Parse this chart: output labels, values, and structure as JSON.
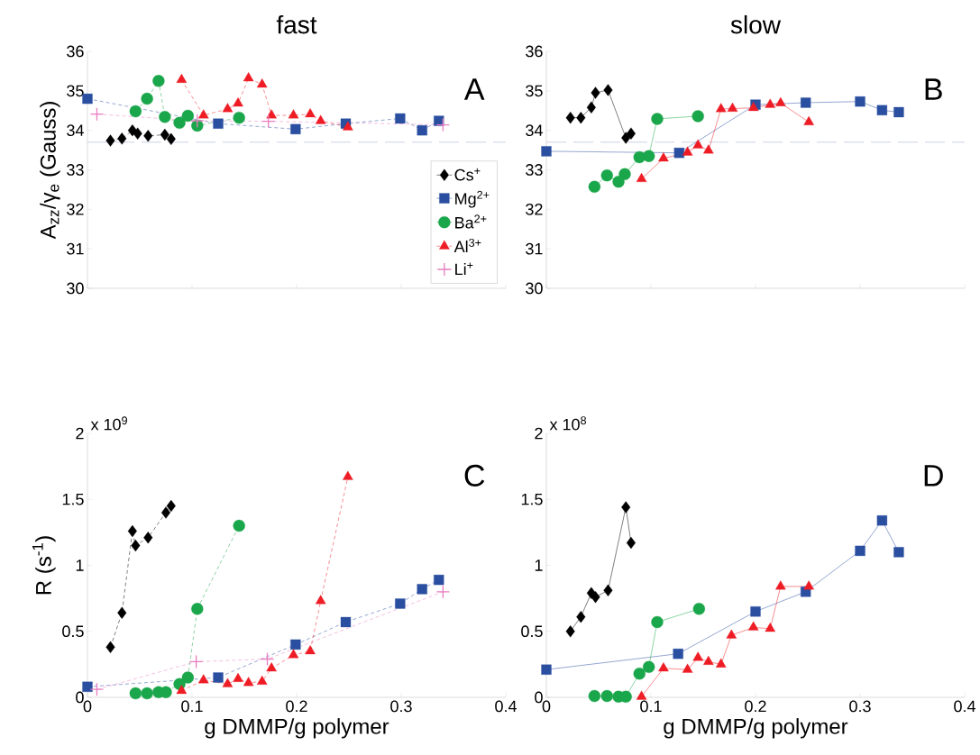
{
  "chart_data": [
    {
      "type": "line",
      "title": "fast",
      "ylabel": "A$_{zz}$/γ$_{e}$ (Gauss)",
      "annotations": [
        "A"
      ],
      "xlim": [
        0,
        0.4
      ],
      "xticks": [
        0,
        0.1,
        0.2,
        0.3,
        0.4
      ],
      "ylim": [
        30,
        36
      ],
      "yticks": [
        30,
        31,
        32,
        33,
        34,
        35,
        36
      ],
      "tick_labels": "y",
      "grid": false,
      "legend": "bottom right",
      "line_style": "dashed",
      "ref_lines": [
        {
          "axis": "y",
          "value": 33.7,
          "color": "#a8b0d8",
          "line_style": "dashed"
        }
      ],
      "series": [
        {
          "name": "Cs$^{+}$",
          "color": "#000000",
          "marker": "diamond",
          "x": [
            0.022,
            0.033,
            0.043,
            0.048,
            0.058,
            0.074,
            0.08
          ],
          "values": [
            33.74,
            33.79,
            34.0,
            33.92,
            33.86,
            33.89,
            33.78
          ]
        },
        {
          "name": "Mg$^{2+}$",
          "color": "#2a4fa0",
          "marker": "square",
          "x": [
            0,
            0.125,
            0.199,
            0.247,
            0.299,
            0.32,
            0.336
          ],
          "values": [
            34.8,
            34.17,
            34.03,
            34.17,
            34.3,
            34.0,
            34.24
          ]
        },
        {
          "name": "Ba$^{2+}$",
          "color": "#1aa64a",
          "marker": "circle",
          "x": [
            0.046,
            0.057,
            0.068,
            0.074,
            0.088,
            0.096,
            0.105,
            0.145
          ],
          "values": [
            34.48,
            34.8,
            35.25,
            34.34,
            34.19,
            34.37,
            34.12,
            34.32
          ]
        },
        {
          "name": "Al$^{3+}$",
          "color": "#ee1c25",
          "marker": "triangle",
          "x": [
            0.09,
            0.111,
            0.134,
            0.144,
            0.154,
            0.167,
            0.176,
            0.197,
            0.213,
            0.223,
            0.249
          ],
          "values": [
            35.28,
            34.38,
            34.54,
            34.68,
            35.32,
            35.16,
            34.38,
            34.38,
            34.41,
            34.24,
            34.08
          ]
        },
        {
          "name": "Li$^{+}$",
          "color": "#e87fc0",
          "marker": "cross",
          "x": [
            0.009,
            0.105,
            0.173,
            0.34
          ],
          "values": [
            34.41,
            34.24,
            34.23,
            34.14
          ]
        }
      ]
    },
    {
      "type": "line",
      "title": "slow",
      "annotations": [
        "B"
      ],
      "xlim": [
        0,
        0.4
      ],
      "xticks": [
        0,
        0.1,
        0.2,
        0.3,
        0.4
      ],
      "ylim": [
        30,
        36
      ],
      "yticks": [
        30,
        31,
        32,
        33,
        34,
        35,
        36
      ],
      "tick_labels": "y",
      "grid": false,
      "line_style": "solid",
      "ref_lines": [
        {
          "axis": "y",
          "value": 33.7,
          "color": "#a8b0d8",
          "line_style": "dashed"
        }
      ],
      "series": [
        {
          "color": "#000000",
          "marker": "diamond",
          "x": [
            0.023,
            0.033,
            0.043,
            0.047,
            0.059,
            0.076,
            0.081
          ],
          "values": [
            34.32,
            34.32,
            34.58,
            34.95,
            35.02,
            33.81,
            33.92
          ]
        },
        {
          "color": "#2a4fa0",
          "marker": "square",
          "x": [
            0,
            0.127,
            0.2,
            0.248,
            0.3,
            0.321,
            0.337
          ],
          "values": [
            33.47,
            33.43,
            34.65,
            34.7,
            34.73,
            34.51,
            34.46
          ]
        },
        {
          "color": "#1aa64a",
          "marker": "circle",
          "x": [
            0.046,
            0.058,
            0.069,
            0.075,
            0.089,
            0.098,
            0.106,
            0.145
          ],
          "values": [
            32.57,
            32.86,
            32.7,
            32.89,
            33.32,
            33.35,
            34.29,
            34.36
          ]
        },
        {
          "color": "#ee1c25",
          "marker": "triangle",
          "x": [
            0.091,
            0.112,
            0.135,
            0.145,
            0.155,
            0.167,
            0.178,
            0.198,
            0.214,
            0.224,
            0.251
          ],
          "values": [
            32.77,
            33.29,
            33.44,
            33.62,
            33.49,
            34.54,
            34.55,
            34.57,
            34.65,
            34.69,
            34.21
          ]
        }
      ]
    },
    {
      "type": "line",
      "xlabel": "g DMMP/g polymer",
      "ylabel": "R (s$^{-1}$)",
      "annotations": [
        "C",
        "x 10$^{9}$"
      ],
      "xlim": [
        0,
        0.4
      ],
      "xticks": [
        0,
        0.1,
        0.2,
        0.3,
        0.4
      ],
      "ylim": [
        0,
        2
      ],
      "yticks": [
        0,
        0.5,
        1,
        1.5,
        2
      ],
      "grid": false,
      "line_style": "dashed",
      "series": [
        {
          "color": "#000000",
          "marker": "diamond",
          "x": [
            0.022,
            0.033,
            0.043,
            0.046,
            0.058,
            0.075,
            0.08
          ],
          "values": [
            0.38,
            0.64,
            1.26,
            1.15,
            1.21,
            1.4,
            1.45
          ]
        },
        {
          "color": "#2a4fa0",
          "marker": "square",
          "x": [
            0,
            0.125,
            0.199,
            0.247,
            0.299,
            0.32,
            0.336
          ],
          "values": [
            0.08,
            0.15,
            0.4,
            0.57,
            0.71,
            0.82,
            0.89
          ]
        },
        {
          "color": "#1aa64a",
          "marker": "circle",
          "x": [
            0.046,
            0.057,
            0.068,
            0.075,
            0.088,
            0.096,
            0.105,
            0.145
          ],
          "values": [
            0.03,
            0.03,
            0.04,
            0.04,
            0.1,
            0.15,
            0.67,
            1.3
          ]
        },
        {
          "color": "#ee1c25",
          "marker": "triangle",
          "x": [
            0.09,
            0.111,
            0.134,
            0.144,
            0.154,
            0.167,
            0.176,
            0.197,
            0.213,
            0.223,
            0.249
          ],
          "values": [
            0.05,
            0.13,
            0.1,
            0.14,
            0.11,
            0.12,
            0.22,
            0.32,
            0.35,
            0.73,
            1.67
          ]
        },
        {
          "color": "#e87fc0",
          "marker": "cross",
          "x": [
            0.009,
            0.104,
            0.172,
            0.34
          ],
          "values": [
            0.06,
            0.27,
            0.29,
            0.8
          ]
        }
      ]
    },
    {
      "type": "line",
      "xlabel": "g DMMP/g polymer",
      "annotations": [
        "D",
        "x 10$^{8}$"
      ],
      "xlim": [
        0,
        0.4
      ],
      "xticks": [
        0,
        0.1,
        0.2,
        0.3,
        0.4
      ],
      "ylim": [
        0,
        2
      ],
      "yticks": [
        0,
        0.5,
        1,
        1.5,
        2
      ],
      "grid": false,
      "line_style": "solid",
      "series": [
        {
          "color": "#000000",
          "marker": "diamond",
          "x": [
            0.023,
            0.033,
            0.043,
            0.047,
            0.059,
            0.076,
            0.081
          ],
          "values": [
            0.5,
            0.61,
            0.79,
            0.76,
            0.81,
            1.44,
            1.17
          ]
        },
        {
          "color": "#2a4fa0",
          "marker": "square",
          "x": [
            0,
            0.126,
            0.2,
            0.248,
            0.3,
            0.321,
            0.337
          ],
          "values": [
            0.21,
            0.33,
            0.65,
            0.8,
            1.11,
            1.34,
            1.1
          ]
        },
        {
          "color": "#1aa64a",
          "marker": "circle",
          "x": [
            0.046,
            0.058,
            0.069,
            0.076,
            0.089,
            0.098,
            0.106,
            0.146
          ],
          "values": [
            0.01,
            0.01,
            0.005,
            0.005,
            0.18,
            0.23,
            0.57,
            0.67
          ]
        },
        {
          "color": "#ee1c25",
          "marker": "triangle",
          "x": [
            0.091,
            0.112,
            0.135,
            0.145,
            0.155,
            0.167,
            0.177,
            0.198,
            0.214,
            0.224,
            0.251
          ],
          "values": [
            0.005,
            0.22,
            0.21,
            0.3,
            0.27,
            0.25,
            0.47,
            0.53,
            0.52,
            0.84,
            0.84
          ]
        }
      ]
    }
  ]
}
